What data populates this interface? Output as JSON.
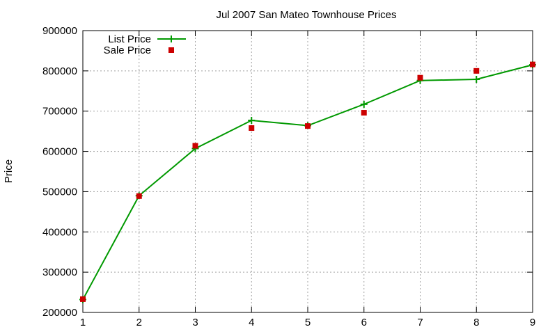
{
  "chart_data": {
    "type": "line",
    "title": "Jul 2007 San Mateo Townhouse Prices",
    "xlabel": "",
    "ylabel": "Price",
    "x": [
      1,
      2,
      3,
      4,
      5,
      6,
      7,
      8,
      9
    ],
    "xlim": [
      1,
      9
    ],
    "ylim": [
      200000,
      900000
    ],
    "x_ticks": [
      "1",
      "2",
      "3",
      "4",
      "5",
      "6",
      "7",
      "8",
      "9"
    ],
    "y_ticks": [
      "200000",
      "300000",
      "400000",
      "500000",
      "600000",
      "700000",
      "800000",
      "900000"
    ],
    "grid": true,
    "legend_position": "top-left",
    "series": [
      {
        "name": "List Price",
        "style": "lines+points",
        "marker": "plus",
        "color": "#009900",
        "values": [
          232000,
          490000,
          607000,
          677000,
          664000,
          717000,
          776000,
          779000,
          815000
        ]
      },
      {
        "name": "Sale Price",
        "style": "points",
        "marker": "square",
        "color": "#cc0000",
        "values": [
          233000,
          489000,
          614000,
          658000,
          663000,
          696000,
          783000,
          800000,
          816000
        ]
      }
    ]
  }
}
